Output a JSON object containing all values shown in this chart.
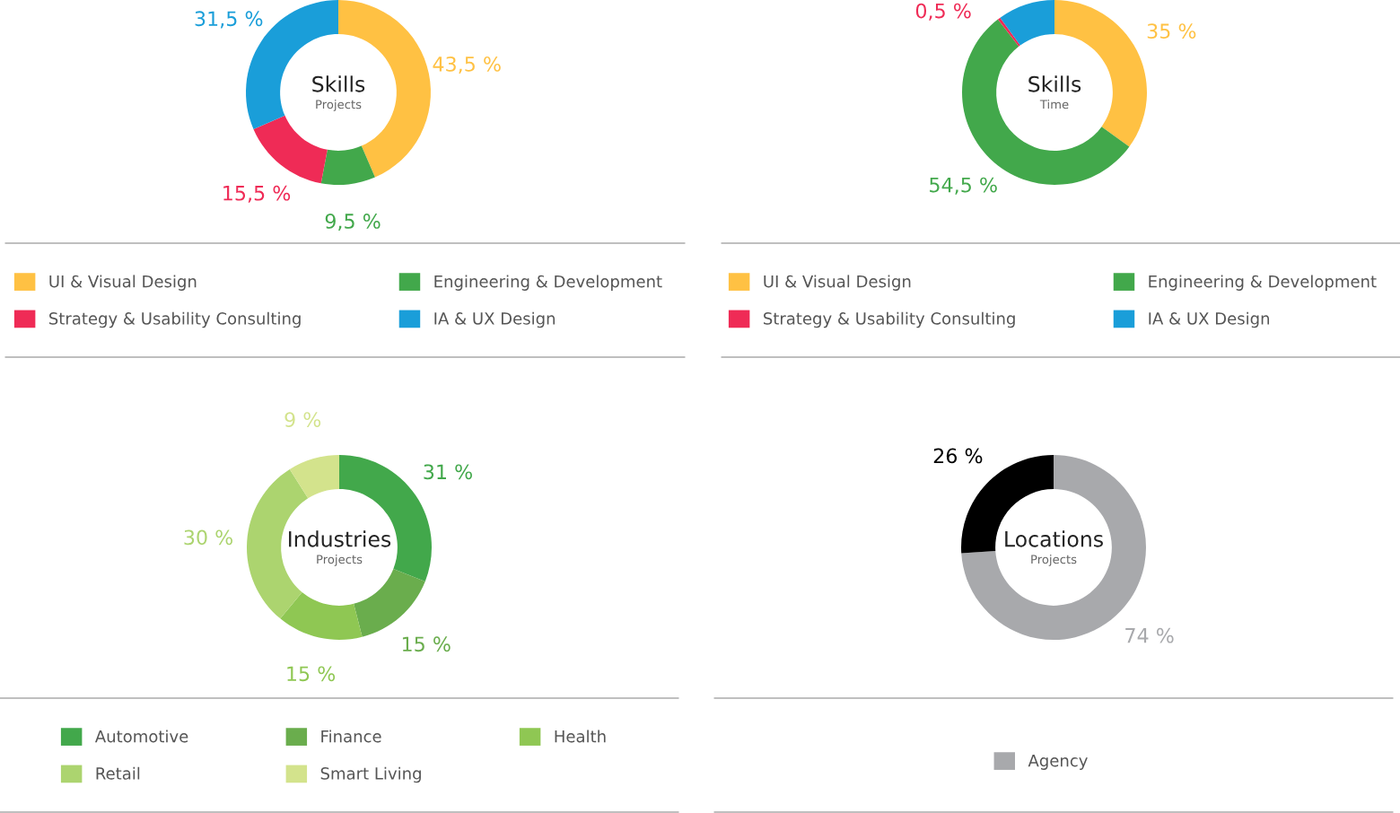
{
  "chart_data": [
    {
      "type": "donut",
      "title": "Skills",
      "subtitle": "Projects",
      "legend": "bottom",
      "categories": [
        "UI & Visual Design",
        "Engineering & Development",
        "Strategy & Usability Consulting",
        "IA & UX Design"
      ],
      "values": [
        43.5,
        9.5,
        15.5,
        31.5
      ],
      "colors": [
        "#ffc143",
        "#42a84b",
        "#ef2b56",
        "#1a9ed9"
      ],
      "value_labels": [
        "43,5 %",
        "9,5 %",
        "15,5 %",
        "31,5 %"
      ]
    },
    {
      "type": "donut",
      "title": "Skills",
      "subtitle": "Time",
      "legend": "bottom",
      "categories": [
        "UI & Visual Design",
        "Engineering & Development",
        "Strategy & Usability Consulting",
        "IA & UX Design"
      ],
      "values": [
        35,
        54.5,
        0.5,
        10
      ],
      "colors": [
        "#ffc143",
        "#42a84b",
        "#ef2b56",
        "#1a9ed9"
      ],
      "value_labels": [
        "35 %",
        "54,5 %",
        "0,5 %",
        null
      ]
    },
    {
      "type": "donut",
      "title": "Industries",
      "subtitle": "Projects",
      "legend": "bottom",
      "categories": [
        "Automotive",
        "Finance",
        "Health",
        "Retail",
        "Smart Living"
      ],
      "values": [
        31,
        15,
        15,
        30,
        9
      ],
      "colors": [
        "#42a84b",
        "#6aad4d",
        "#8fc753",
        "#acd46f",
        "#d3e38c"
      ],
      "value_labels": [
        "31 %",
        "15 %",
        "15 %",
        "30 %",
        "9 %"
      ]
    },
    {
      "type": "donut",
      "title": "Locations",
      "subtitle": "Projects",
      "legend": "bottom",
      "categories": [
        "Agency",
        null
      ],
      "values": [
        74,
        26
      ],
      "colors": [
        "#a8a9ac",
        "#000000"
      ],
      "value_labels": [
        "74 %",
        "26 %"
      ]
    }
  ]
}
